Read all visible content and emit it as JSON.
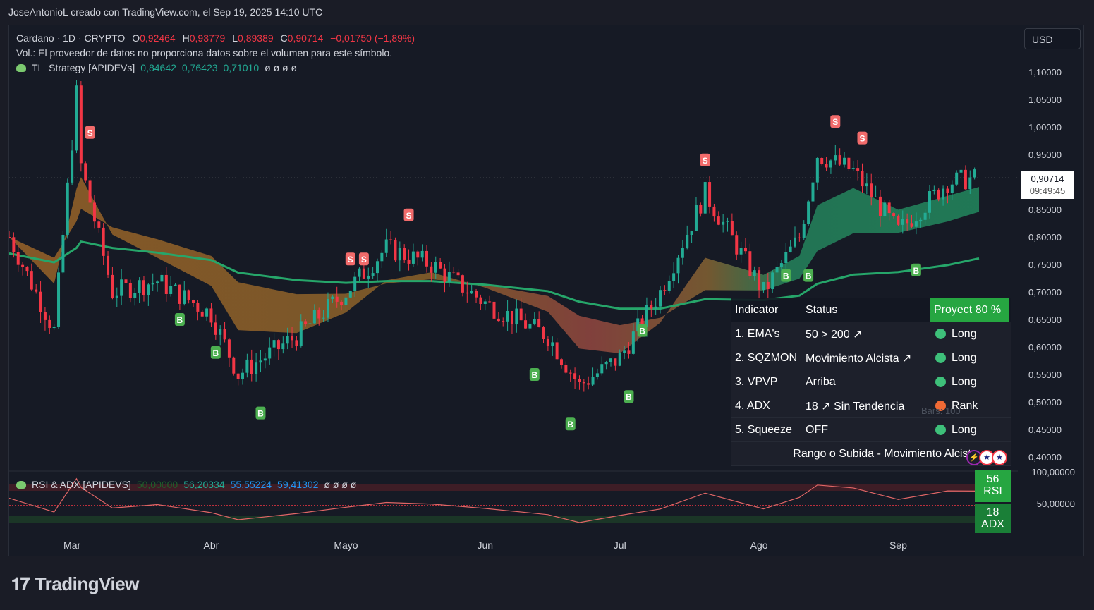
{
  "header": {
    "attribution": "JoseAntonioL creado con TradingView.com, el Sep 19, 2025 14:10 UTC"
  },
  "symbol": {
    "name": "Cardano · 1D · CRYPTO",
    "o_label": "O",
    "o": "0,92464",
    "h_label": "H",
    "h": "0,93779",
    "l_label": "L",
    "l": "0,89389",
    "c_label": "C",
    "c": "0,90714",
    "change": "−0,01750 (−1,89%)"
  },
  "volume_note": "Vol.: El proveedor de datos no proporciona datos sobre el volumen para este símbolo.",
  "strategy": {
    "name": "TL_Strategy [APIDEVs]",
    "v1": "0,84642",
    "v2": "0,76423",
    "v3": "0,71010",
    "empties": "ø  ø  ø  ø"
  },
  "currency": "USD",
  "last_price": {
    "value": "0,90714",
    "countdown": "09:49:45"
  },
  "price_axis": [
    "1,10000",
    "1,05000",
    "1,00000",
    "0,95000",
    "0,90000",
    "0,85000",
    "0,80000",
    "0,75000",
    "0,70000",
    "0,65000",
    "0,60000",
    "0,55000",
    "0,50000",
    "0,45000",
    "0,40000"
  ],
  "time_axis": [
    "Mar",
    "Abr",
    "Mayo",
    "Jun",
    "Jul",
    "Ago",
    "Sep"
  ],
  "table": {
    "head": {
      "indicator": "Indicator",
      "status": "Status",
      "proj": "Proyect 80 %"
    },
    "rows": [
      {
        "ind": "1. EMA's",
        "status": "50 > 200 ↗",
        "signal": "Long",
        "color": "#3ec07a"
      },
      {
        "ind": "2. SQZMON",
        "status": "Movimiento Alcista ↗",
        "signal": "Long",
        "color": "#3ec07a"
      },
      {
        "ind": "3. VPVP",
        "status": "Arriba",
        "signal": "Long",
        "color": "#3ec07a"
      },
      {
        "ind": "4. ADX",
        "status": "18 ↗ Sin Tendencia",
        "signal": "Rank",
        "color": "#f06a35"
      },
      {
        "ind": "5. Squeeze",
        "status": "OFF",
        "signal": "Long",
        "color": "#3ec07a"
      }
    ],
    "footer": "Rango o Subida - Movimiento Alcista",
    "bars_note": "Bars: 100"
  },
  "rsi_panel": {
    "name": "RSI & ADX [APIDEVS]",
    "v1": "50,00000",
    "v2": "56,20334",
    "v3": "55,55224",
    "v4": "59,41302",
    "empties": "ø  ø  ø  ø",
    "axis_top": "100,00000",
    "axis_mid": "50,00000",
    "rsi_value": "56",
    "rsi_label": "RSI",
    "adx_value": "18",
    "adx_label": "ADX"
  },
  "brand": "TradingView",
  "colors": {
    "up": "#22ab94",
    "down": "#f23645",
    "bg": "#161a25",
    "proj": "#26a641"
  },
  "chart_data": {
    "type": "candlestick",
    "title": "Cardano · 1D · CRYPTO",
    "ylim": [
      0.38,
      1.14
    ],
    "x_range": [
      "2025-02-15",
      "2025-09-19"
    ],
    "price_series_approx": [
      {
        "date": "2025-02-15",
        "close": 0.8
      },
      {
        "date": "2025-02-25",
        "close": 0.63
      },
      {
        "date": "2025-03-02",
        "close": 1.06
      },
      {
        "date": "2025-03-03",
        "close": 0.93
      },
      {
        "date": "2025-03-10",
        "close": 0.7
      },
      {
        "date": "2025-03-20",
        "close": 0.72
      },
      {
        "date": "2025-04-01",
        "close": 0.66
      },
      {
        "date": "2025-04-07",
        "close": 0.55
      },
      {
        "date": "2025-04-20",
        "close": 0.62
      },
      {
        "date": "2025-05-01",
        "close": 0.7
      },
      {
        "date": "2025-05-10",
        "close": 0.78
      },
      {
        "date": "2025-05-20",
        "close": 0.75
      },
      {
        "date": "2025-06-01",
        "close": 0.68
      },
      {
        "date": "2025-06-15",
        "close": 0.62
      },
      {
        "date": "2025-06-22",
        "close": 0.53
      },
      {
        "date": "2025-07-01",
        "close": 0.58
      },
      {
        "date": "2025-07-10",
        "close": 0.7
      },
      {
        "date": "2025-07-20",
        "close": 0.88
      },
      {
        "date": "2025-08-02",
        "close": 0.7
      },
      {
        "date": "2025-08-10",
        "close": 0.8
      },
      {
        "date": "2025-08-14",
        "close": 0.95
      },
      {
        "date": "2025-08-22",
        "close": 0.92
      },
      {
        "date": "2025-09-01",
        "close": 0.81
      },
      {
        "date": "2025-09-12",
        "close": 0.9
      },
      {
        "date": "2025-09-19",
        "close": 0.90714
      }
    ],
    "signals": {
      "sell": [
        "2025-03-05",
        "2025-05-02",
        "2025-05-05",
        "2025-05-15",
        "2025-07-20",
        "2025-08-18",
        "2025-08-24"
      ],
      "buy": [
        "2025-03-25",
        "2025-04-02",
        "2025-04-12",
        "2025-06-12",
        "2025-06-20",
        "2025-07-03",
        "2025-07-06",
        "2025-08-07",
        "2025-08-12",
        "2025-09-05"
      ]
    }
  }
}
